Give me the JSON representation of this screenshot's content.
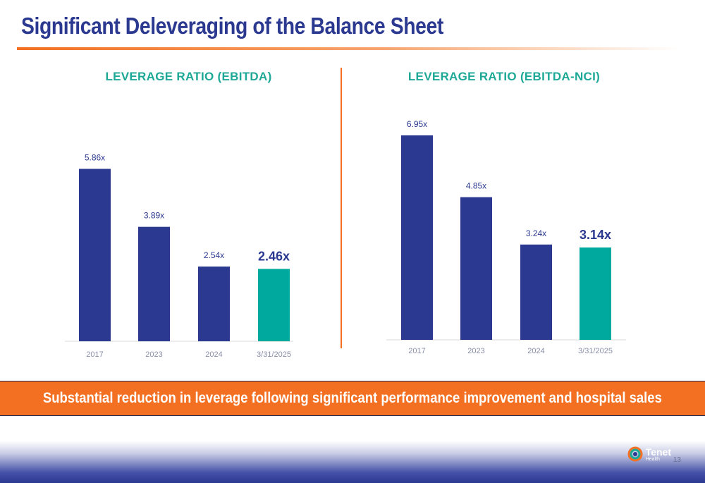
{
  "slide": {
    "title": "Significant Deleveraging of the Balance Sheet",
    "banner": "Substantial reduction in leverage following significant performance improvement and hospital sales",
    "page_number": "13",
    "logo": {
      "name": "Tenet",
      "sub": "Health"
    }
  },
  "colors": {
    "primary_bar": "#2b3990",
    "highlight_bar": "#00a99d",
    "accent": "#f36f21",
    "title_teal": "#1ea896"
  },
  "chart_data": [
    {
      "type": "bar",
      "title": "LEVERAGE RATIO (EBITDA)",
      "categories": [
        "2017",
        "2023",
        "2024",
        "3/31/2025"
      ],
      "values": [
        5.86,
        3.89,
        2.54,
        2.46
      ],
      "labels": [
        "5.86x",
        "3.89x",
        "2.54x",
        "2.46x"
      ],
      "highlight_index": 3,
      "ylim": [
        0,
        6.95
      ]
    },
    {
      "type": "bar",
      "title": "LEVERAGE RATIO (EBITDA-NCI)",
      "categories": [
        "2017",
        "2023",
        "2024",
        "3/31/2025"
      ],
      "values": [
        6.95,
        4.85,
        3.24,
        3.14
      ],
      "labels": [
        "6.95x",
        "4.85x",
        "3.24x",
        "3.14x"
      ],
      "highlight_index": 3,
      "ylim": [
        0,
        6.95
      ]
    }
  ]
}
